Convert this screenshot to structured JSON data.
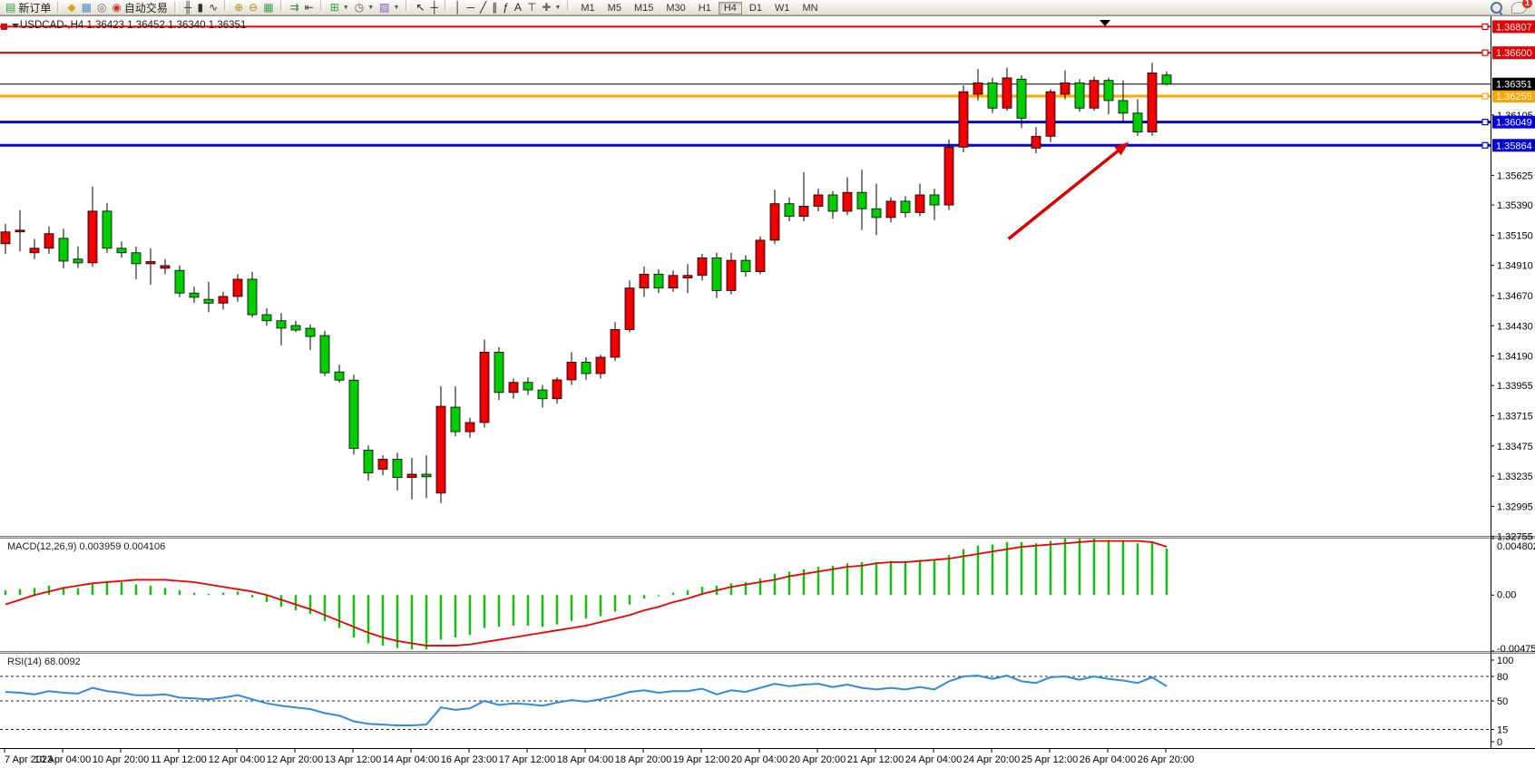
{
  "toolbar": {
    "new_order_label": "新订单",
    "autotrading_label": "自动交易",
    "icon_groups": [
      [
        {
          "name": "history-quotes-icon",
          "glyph": "◆",
          "color": "#d9a514"
        },
        {
          "name": "market-watch-icon",
          "glyph": "▦",
          "color": "#5b84c0"
        },
        {
          "name": "navigator-icon",
          "glyph": "◎",
          "color": "#6a6a6a"
        }
      ],
      [
        {
          "name": "bar-chart-icon",
          "glyph": "╫",
          "color": "#333333"
        },
        {
          "name": "candlestick-chart-icon",
          "glyph": "▮",
          "color": "#333333"
        },
        {
          "name": "line-chart-icon",
          "glyph": "∿",
          "color": "#333333"
        }
      ],
      [
        {
          "name": "zoom-in-icon",
          "glyph": "⊕",
          "color": "#b08d12"
        },
        {
          "name": "zoom-out-icon",
          "glyph": "⊖",
          "color": "#b08d12"
        },
        {
          "name": "tile-windows-icon",
          "glyph": "▦",
          "color": "#3a9e4f"
        }
      ],
      [
        {
          "name": "auto-scroll-icon",
          "glyph": "⇉",
          "color": "#2e7d32"
        },
        {
          "name": "chart-shift-icon",
          "glyph": "⇤",
          "color": "#444444"
        }
      ],
      [
        {
          "name": "indicators-icon",
          "glyph": "⊞",
          "color": "#2e9e3f",
          "dropdown": true
        },
        {
          "name": "periods-icon",
          "glyph": "◷",
          "color": "#555555",
          "dropdown": true
        },
        {
          "name": "templates-icon",
          "glyph": "▨",
          "color": "#7d5bb5",
          "dropdown": true
        }
      ],
      [
        {
          "name": "cursor-icon",
          "glyph": "↖",
          "color": "#222222"
        },
        {
          "name": "crosshair-icon",
          "glyph": "┼",
          "color": "#222222"
        }
      ],
      [
        {
          "name": "vertical-line-icon",
          "glyph": "│",
          "color": "#222222"
        },
        {
          "name": "horizontal-line-icon",
          "glyph": "─",
          "color": "#222222"
        },
        {
          "name": "trendline-icon",
          "glyph": "╱",
          "color": "#222222"
        },
        {
          "name": "equidistant-channel-icon",
          "glyph": "∥",
          "color": "#222222"
        },
        {
          "name": "fibonacci-icon",
          "glyph": "ƒ",
          "color": "#222222"
        },
        {
          "name": "text-icon",
          "glyph": "A",
          "color": "#222222"
        },
        {
          "name": "text-label-icon",
          "glyph": "⊤",
          "color": "#222222"
        },
        {
          "name": "arrows-shapes-icon",
          "glyph": "✚",
          "color": "#666666",
          "dropdown": true
        }
      ]
    ],
    "timeframes": [
      "M1",
      "M5",
      "M15",
      "M30",
      "H1",
      "H4",
      "D1",
      "W1",
      "MN"
    ],
    "active_timeframe": "H4",
    "notification_badge": "1"
  },
  "chart": {
    "title": "USDCAD-,H4",
    "ohlc_text": "1.36423 1.36452 1.36340 1.36351",
    "colors": {
      "bull": "#ee0000",
      "bear": "#00cc00",
      "outline": "#000000",
      "red_line": "#e80000",
      "orange_line": "#ffa500",
      "blue_line": "#0000e0",
      "current_price_line": "#000000",
      "macd_histogram": "#00cc00",
      "macd_signal": "#ee0000",
      "rsi_line": "#2f8be0",
      "arrow": "#dd0000"
    }
  },
  "chart_data": [
    {
      "type": "candlestick",
      "symbol": "USDCAD-",
      "timeframe": "H4",
      "title": "USDCAD-,H4  1.36423 1.36452 1.36340 1.36351",
      "ylim": [
        1.3276,
        1.36875
      ],
      "y_ticks": [
        1.36105,
        1.35625,
        1.3539,
        1.3515,
        1.3491,
        1.3467,
        1.3443,
        1.3419,
        1.33955,
        1.33715,
        1.33475,
        1.33235,
        1.32995,
        1.32755
      ],
      "x_tick_labels": [
        "7 Apr 2023",
        "10 Apr 04:00",
        "10 Apr 20:00",
        "11 Apr 12:00",
        "12 Apr 04:00",
        "12 Apr 20:00",
        "13 Apr 12:00",
        "14 Apr 04:00",
        "16 Apr 23:00",
        "17 Apr 12:00",
        "18 Apr 04:00",
        "18 Apr 20:00",
        "19 Apr 12:00",
        "20 Apr 04:00",
        "20 Apr 20:00",
        "21 Apr 12:00",
        "24 Apr 04:00",
        "24 Apr 20:00",
        "25 Apr 12:00",
        "26 Apr 04:00",
        "26 Apr 20:00"
      ],
      "bars_per_x_tick": 4,
      "current_price": 1.36351,
      "hlines": [
        {
          "price": 1.36807,
          "color": "#e80000",
          "width": 2,
          "label": "1.36807"
        },
        {
          "price": 1.366,
          "color": "#e80000",
          "width": 2,
          "label": "1.36600"
        },
        {
          "price": 1.36255,
          "color": "#ffa500",
          "width": 3,
          "label": "1.36255"
        },
        {
          "price": 1.36049,
          "color": "#0000e0",
          "width": 3,
          "label": "1.36049"
        },
        {
          "price": 1.35864,
          "color": "#0000e0",
          "width": 3,
          "label": "1.35864"
        }
      ],
      "arrow": {
        "from": {
          "bar": 69.1,
          "price": 1.3512
        },
        "to": {
          "bar": 77.4,
          "price": 1.3589
        },
        "color": "#dd0000"
      },
      "candles_ohlc": [
        [
          1.35082,
          1.3524,
          1.35,
          1.35176
        ],
        [
          1.35176,
          1.3535,
          1.3502,
          1.3519
        ],
        [
          1.3501,
          1.3512,
          1.3496,
          1.35046
        ],
        [
          1.35046,
          1.3522,
          1.35,
          1.35162
        ],
        [
          1.35125,
          1.352,
          1.34887,
          1.34944
        ],
        [
          1.3496,
          1.35062,
          1.3489,
          1.3493
        ],
        [
          1.3493,
          1.35536,
          1.349,
          1.35341
        ],
        [
          1.35341,
          1.35406,
          1.3501,
          1.35046
        ],
        [
          1.35046,
          1.351,
          1.3497,
          1.3501
        ],
        [
          1.3501,
          1.3506,
          1.348,
          1.34923
        ],
        [
          1.34923,
          1.35046,
          1.34757,
          1.3494
        ],
        [
          1.34887,
          1.3496,
          1.3484,
          1.34908
        ],
        [
          1.3487,
          1.3491,
          1.34656,
          1.3469
        ],
        [
          1.3469,
          1.3474,
          1.3461,
          1.34656
        ],
        [
          1.3464,
          1.3478,
          1.34537,
          1.3461
        ],
        [
          1.3461,
          1.347,
          1.3456,
          1.34663
        ],
        [
          1.34663,
          1.3484,
          1.3462,
          1.348
        ],
        [
          1.348,
          1.3486,
          1.34497,
          1.34518
        ],
        [
          1.34518,
          1.3457,
          1.3443,
          1.3447
        ],
        [
          1.3447,
          1.3453,
          1.34274,
          1.34411
        ],
        [
          1.34432,
          1.3447,
          1.3438,
          1.34396
        ],
        [
          1.3441,
          1.3444,
          1.34238,
          1.34345
        ],
        [
          1.34352,
          1.3439,
          1.3403,
          1.34056
        ],
        [
          1.34063,
          1.3412,
          1.3398,
          1.33998
        ],
        [
          1.33998,
          1.3404,
          1.33406,
          1.33456
        ],
        [
          1.33442,
          1.3348,
          1.332,
          1.33261
        ],
        [
          1.3329,
          1.334,
          1.3324,
          1.33369
        ],
        [
          1.33369,
          1.3342,
          1.3312,
          1.33224
        ],
        [
          1.33224,
          1.3338,
          1.3305,
          1.3325
        ],
        [
          1.3325,
          1.334,
          1.3306,
          1.3323
        ],
        [
          1.331,
          1.3395,
          1.3302,
          1.3379
        ],
        [
          1.33783,
          1.33949,
          1.33552,
          1.33588
        ],
        [
          1.33588,
          1.337,
          1.3354,
          1.33661
        ],
        [
          1.33661,
          1.3432,
          1.3362,
          1.3422
        ],
        [
          1.3422,
          1.3426,
          1.3384,
          1.339
        ],
        [
          1.339,
          1.3401,
          1.3385,
          1.3398
        ],
        [
          1.3398,
          1.3402,
          1.3388,
          1.3392
        ],
        [
          1.3392,
          1.3396,
          1.3378,
          1.3385
        ],
        [
          1.3385,
          1.3402,
          1.3381,
          1.34
        ],
        [
          1.34,
          1.3422,
          1.3396,
          1.3414
        ],
        [
          1.3414,
          1.3418,
          1.34,
          1.3405
        ],
        [
          1.3405,
          1.342,
          1.3401,
          1.3418
        ],
        [
          1.3418,
          1.3446,
          1.3415,
          1.344
        ],
        [
          1.344,
          1.3479,
          1.3438,
          1.3473
        ],
        [
          1.3473,
          1.349,
          1.3466,
          1.3484
        ],
        [
          1.3484,
          1.3488,
          1.3469,
          1.3473
        ],
        [
          1.3473,
          1.3487,
          1.347,
          1.3483
        ],
        [
          1.3481,
          1.3492,
          1.3469,
          1.3483
        ],
        [
          1.3483,
          1.35,
          1.3479,
          1.3497
        ],
        [
          1.3497,
          1.3501,
          1.3465,
          1.3471
        ],
        [
          1.3471,
          1.3501,
          1.3468,
          1.3495
        ],
        [
          1.3495,
          1.3499,
          1.3482,
          1.3486
        ],
        [
          1.3486,
          1.3514,
          1.3484,
          1.3511
        ],
        [
          1.3511,
          1.3551,
          1.3508,
          1.354
        ],
        [
          1.354,
          1.3545,
          1.3526,
          1.353
        ],
        [
          1.353,
          1.3565,
          1.3526,
          1.3538
        ],
        [
          1.3538,
          1.3552,
          1.3534,
          1.3547
        ],
        [
          1.3547,
          1.355,
          1.3528,
          1.3534
        ],
        [
          1.3534,
          1.3561,
          1.3531,
          1.3549
        ],
        [
          1.3549,
          1.3567,
          1.3519,
          1.3536
        ],
        [
          1.3536,
          1.3556,
          1.3515,
          1.3529
        ],
        [
          1.3529,
          1.3545,
          1.3525,
          1.3542
        ],
        [
          1.3542,
          1.3546,
          1.3529,
          1.3533
        ],
        [
          1.3533,
          1.3556,
          1.353,
          1.3547
        ],
        [
          1.3547,
          1.3552,
          1.3527,
          1.3539
        ],
        [
          1.3539,
          1.3591,
          1.3535,
          1.3585
        ],
        [
          1.3585,
          1.3634,
          1.3581,
          1.3629
        ],
        [
          1.3627,
          1.3647,
          1.3622,
          1.3636
        ],
        [
          1.3636,
          1.364,
          1.3612,
          1.3616
        ],
        [
          1.3616,
          1.3648,
          1.3614,
          1.364
        ],
        [
          1.3639,
          1.3642,
          1.36,
          1.3608
        ],
        [
          1.35842,
          1.36008,
          1.358,
          1.35936
        ],
        [
          1.35936,
          1.3631,
          1.3589,
          1.3629
        ],
        [
          1.3627,
          1.3646,
          1.3623,
          1.3636
        ],
        [
          1.3636,
          1.3639,
          1.3613,
          1.3616
        ],
        [
          1.3616,
          1.3641,
          1.3614,
          1.3638
        ],
        [
          1.3638,
          1.364,
          1.3611,
          1.3622
        ],
        [
          1.3622,
          1.3638,
          1.3605,
          1.3612
        ],
        [
          1.3612,
          1.3623,
          1.3594,
          1.3597
        ],
        [
          1.3597,
          1.3652,
          1.3594,
          1.3644
        ],
        [
          1.36423,
          1.36452,
          1.3634,
          1.36351
        ]
      ]
    },
    {
      "type": "macd",
      "label": "MACD(12,26,9)",
      "values_label": "0.003959 0.004106",
      "ylim": [
        -0.004758,
        0.004802
      ],
      "y_ticks": [
        {
          "v": 0.004802,
          "label": "0.004802"
        },
        {
          "v": 0.0,
          "label": "0.00"
        },
        {
          "v": -0.004758,
          "label": "-0.004758"
        }
      ],
      "histogram": [
        0.0004,
        0.0005,
        0.0006,
        0.0008,
        0.0007,
        0.0006,
        0.001,
        0.0012,
        0.0011,
        0.0009,
        0.0008,
        0.0006,
        0.0004,
        0.0002,
        0.0001,
        0.0002,
        0.0003,
        -0.0002,
        -0.0006,
        -0.001,
        -0.0013,
        -0.0016,
        -0.0022,
        -0.0028,
        -0.0036,
        -0.0041,
        -0.0043,
        -0.0045,
        -0.0046,
        -0.0046,
        -0.0038,
        -0.0036,
        -0.0034,
        -0.0028,
        -0.0027,
        -0.0026,
        -0.0026,
        -0.0027,
        -0.0025,
        -0.0022,
        -0.002,
        -0.0018,
        -0.0014,
        -0.0008,
        -0.0003,
        -0.0001,
        0.0002,
        0.0004,
        0.0007,
        0.0008,
        0.001,
        0.0011,
        0.0014,
        0.0018,
        0.002,
        0.0022,
        0.0024,
        0.0025,
        0.0027,
        0.0028,
        0.0028,
        0.0029,
        0.0029,
        0.003,
        0.003,
        0.0034,
        0.0039,
        0.0042,
        0.0043,
        0.0045,
        0.0045,
        0.0044,
        0.0046,
        0.004802,
        0.0048,
        0.0048,
        0.0047,
        0.0046,
        0.0044,
        0.0045,
        0.003959
      ],
      "signal": [
        -0.0008,
        -0.0004,
        0.0,
        0.0003,
        0.0006,
        0.0008,
        0.001,
        0.0011,
        0.0012,
        0.0013,
        0.0013,
        0.0013,
        0.0012,
        0.0011,
        0.0009,
        0.0007,
        0.0005,
        0.0003,
        0.0,
        -0.0004,
        -0.0008,
        -0.0012,
        -0.0017,
        -0.0022,
        -0.0027,
        -0.0032,
        -0.0036,
        -0.0039,
        -0.0041,
        -0.0043,
        -0.0043,
        -0.0043,
        -0.0042,
        -0.004,
        -0.0038,
        -0.0036,
        -0.0034,
        -0.0032,
        -0.003,
        -0.0028,
        -0.0026,
        -0.0023,
        -0.002,
        -0.0017,
        -0.0013,
        -0.001,
        -0.0006,
        -0.0003,
        0.0001,
        0.0004,
        0.0007,
        0.0009,
        0.0011,
        0.0013,
        0.0016,
        0.0018,
        0.002,
        0.0022,
        0.0024,
        0.0025,
        0.0027,
        0.0028,
        0.0028,
        0.0029,
        0.003,
        0.0031,
        0.0033,
        0.0035,
        0.0037,
        0.0039,
        0.0041,
        0.0042,
        0.0043,
        0.0044,
        0.0045,
        0.0046,
        0.0046,
        0.0046,
        0.0046,
        0.0045,
        0.004106
      ]
    },
    {
      "type": "rsi",
      "label": "RSI(14)",
      "value_label": "68.0092",
      "ylim": [
        0,
        100
      ],
      "levels": [
        80,
        50,
        15
      ],
      "y_ticks": [
        {
          "v": 100,
          "label": "100"
        },
        {
          "v": 80,
          "label": "80"
        },
        {
          "v": 50,
          "label": "50"
        },
        {
          "v": 15,
          "label": "15"
        },
        {
          "v": 0,
          "label": "0"
        }
      ],
      "values": [
        61,
        60,
        58,
        62,
        60,
        59,
        66,
        62,
        60,
        57,
        57,
        58,
        54,
        53,
        52,
        54,
        57,
        52,
        47,
        44,
        42,
        40,
        35,
        32,
        25,
        22,
        21,
        20,
        20,
        21,
        42,
        39,
        41,
        50,
        45,
        47,
        46,
        44,
        48,
        51,
        49,
        52,
        56,
        61,
        63,
        60,
        62,
        62,
        65,
        58,
        63,
        61,
        66,
        71,
        68,
        70,
        71,
        67,
        70,
        66,
        64,
        66,
        64,
        67,
        64,
        74,
        80,
        81,
        77,
        81,
        74,
        72,
        79,
        80,
        76,
        80,
        77,
        75,
        72,
        79,
        68.0092
      ]
    }
  ]
}
